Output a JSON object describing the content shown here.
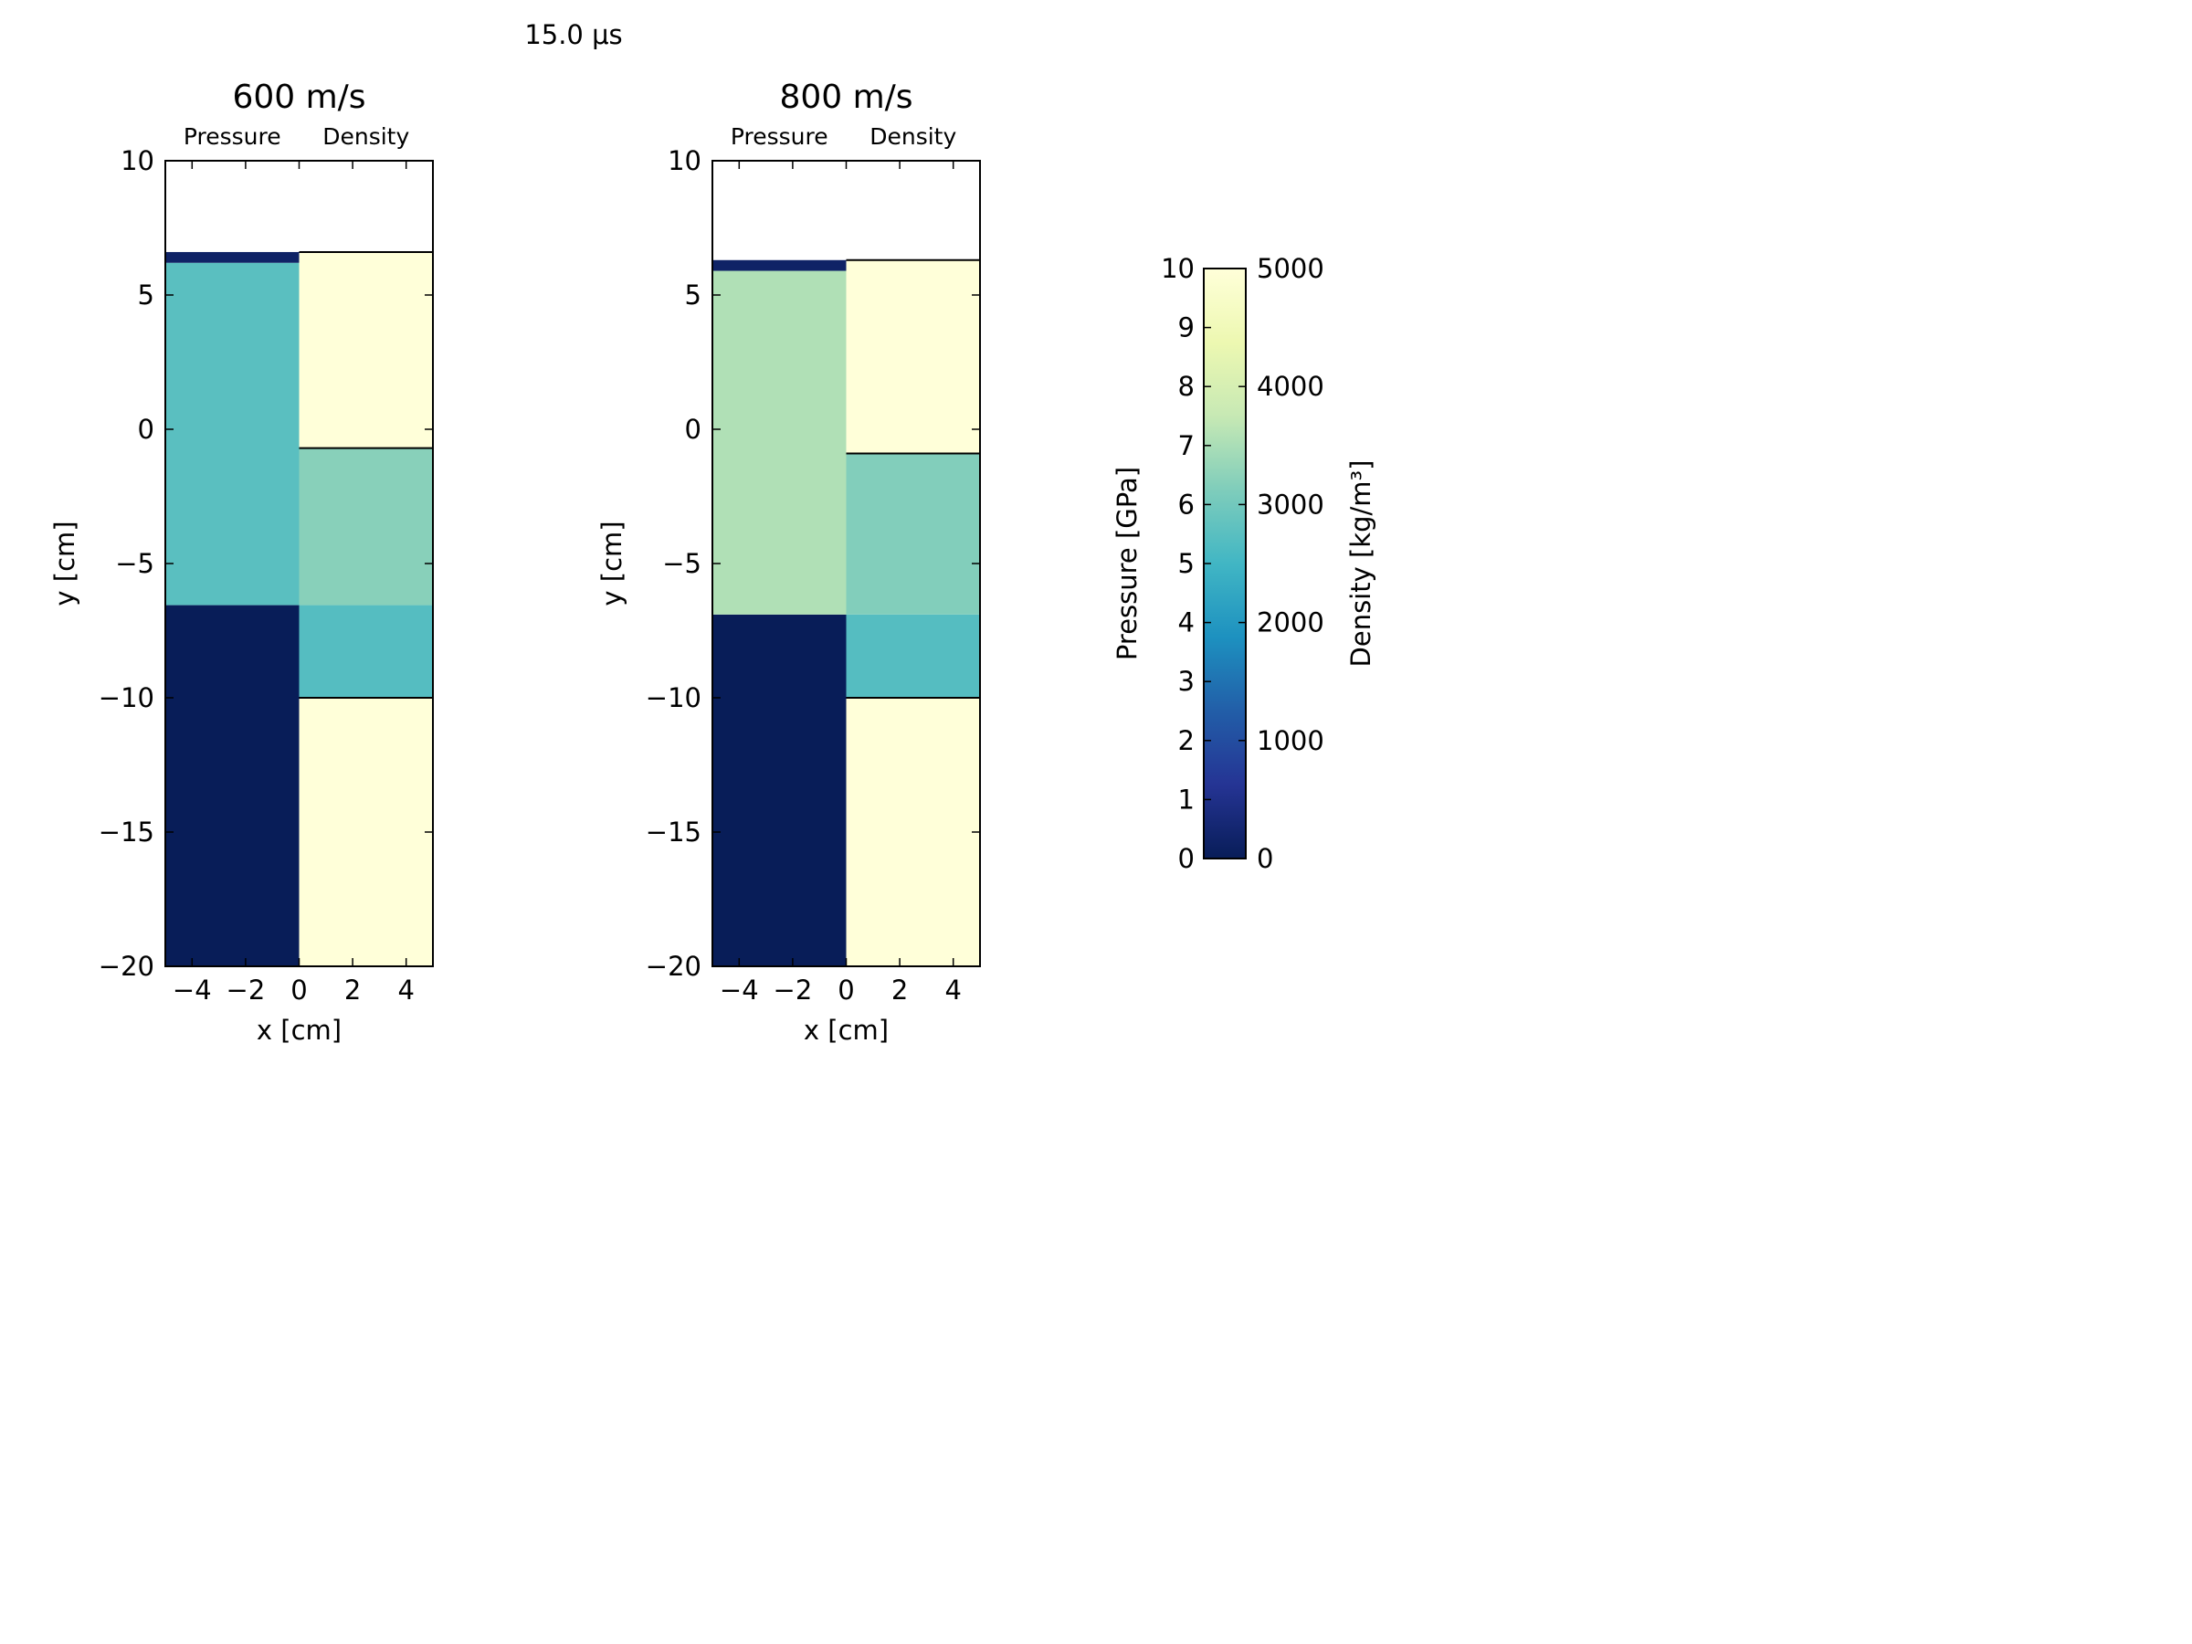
{
  "figure": {
    "suptitle": "15.0 μs",
    "colors": {
      "background": "#ffffff",
      "frame": "#000000",
      "colormap": "YlGnBu",
      "cmap_stops": [
        "#081d58",
        "#253494",
        "#225ea8",
        "#1d91c0",
        "#41b6c4",
        "#7fcdbb",
        "#c7e9b4",
        "#edf8b1",
        "#ffffd9"
      ]
    }
  },
  "chart_data": [
    {
      "type": "heatmap",
      "title": "600 m/s",
      "column_labels": [
        "Pressure",
        "Density"
      ],
      "xlabel": "x [cm]",
      "ylabel": "y [cm]",
      "xlim": [
        -5,
        5
      ],
      "ylim": [
        -20,
        10
      ],
      "xticks": [
        -4,
        -2,
        0,
        2,
        4
      ],
      "yticks": [
        -20,
        -15,
        -10,
        -5,
        0,
        5,
        10
      ],
      "pressure_GPa": [
        {
          "y0": -20,
          "y1": -6.55,
          "value": 0.0
        },
        {
          "y0": -6.55,
          "y1": 6.2,
          "value": 5.5
        },
        {
          "y0": 6.2,
          "y1": 6.6,
          "value": 0.3
        }
      ],
      "density_kg_m3": [
        {
          "y0": -20,
          "y1": -10,
          "value": 5000
        },
        {
          "y0": -10,
          "y1": -6.55,
          "value": 2700
        },
        {
          "y0": -6.55,
          "y1": -0.7,
          "value": 3200
        },
        {
          "y0": -0.7,
          "y1": 6.6,
          "value": 5000
        }
      ],
      "boundaries_y": [
        -10,
        -0.7,
        6.6
      ]
    },
    {
      "type": "heatmap",
      "title": "800 m/s",
      "column_labels": [
        "Pressure",
        "Density"
      ],
      "xlabel": "x [cm]",
      "ylabel": "y [cm]",
      "xlim": [
        -5,
        5
      ],
      "ylim": [
        -20,
        10
      ],
      "xticks": [
        -4,
        -2,
        0,
        2,
        4
      ],
      "yticks": [
        -20,
        -15,
        -10,
        -5,
        0,
        5,
        10
      ],
      "pressure_GPa": [
        {
          "y0": -20,
          "y1": -6.9,
          "value": 0.0
        },
        {
          "y0": -6.9,
          "y1": 5.9,
          "value": 7.1
        },
        {
          "y0": 5.9,
          "y1": 6.3,
          "value": 0.3
        }
      ],
      "density_kg_m3": [
        {
          "y0": -20,
          "y1": -10,
          "value": 5000
        },
        {
          "y0": -10,
          "y1": -6.9,
          "value": 2700
        },
        {
          "y0": -6.9,
          "y1": -0.9,
          "value": 3150
        },
        {
          "y0": -0.9,
          "y1": 6.3,
          "value": 5000
        }
      ],
      "boundaries_y": [
        -10,
        -0.9,
        6.3
      ]
    }
  ],
  "colorbar": {
    "pressure": {
      "label": "Pressure [GPa]",
      "min": 0,
      "max": 10,
      "ticks": [
        0,
        1,
        2,
        3,
        4,
        5,
        6,
        7,
        8,
        9,
        10
      ]
    },
    "density": {
      "label": "Density [kg/m³]",
      "min": 0,
      "max": 5000,
      "ticks": [
        0,
        1000,
        2000,
        3000,
        4000,
        5000
      ]
    }
  }
}
